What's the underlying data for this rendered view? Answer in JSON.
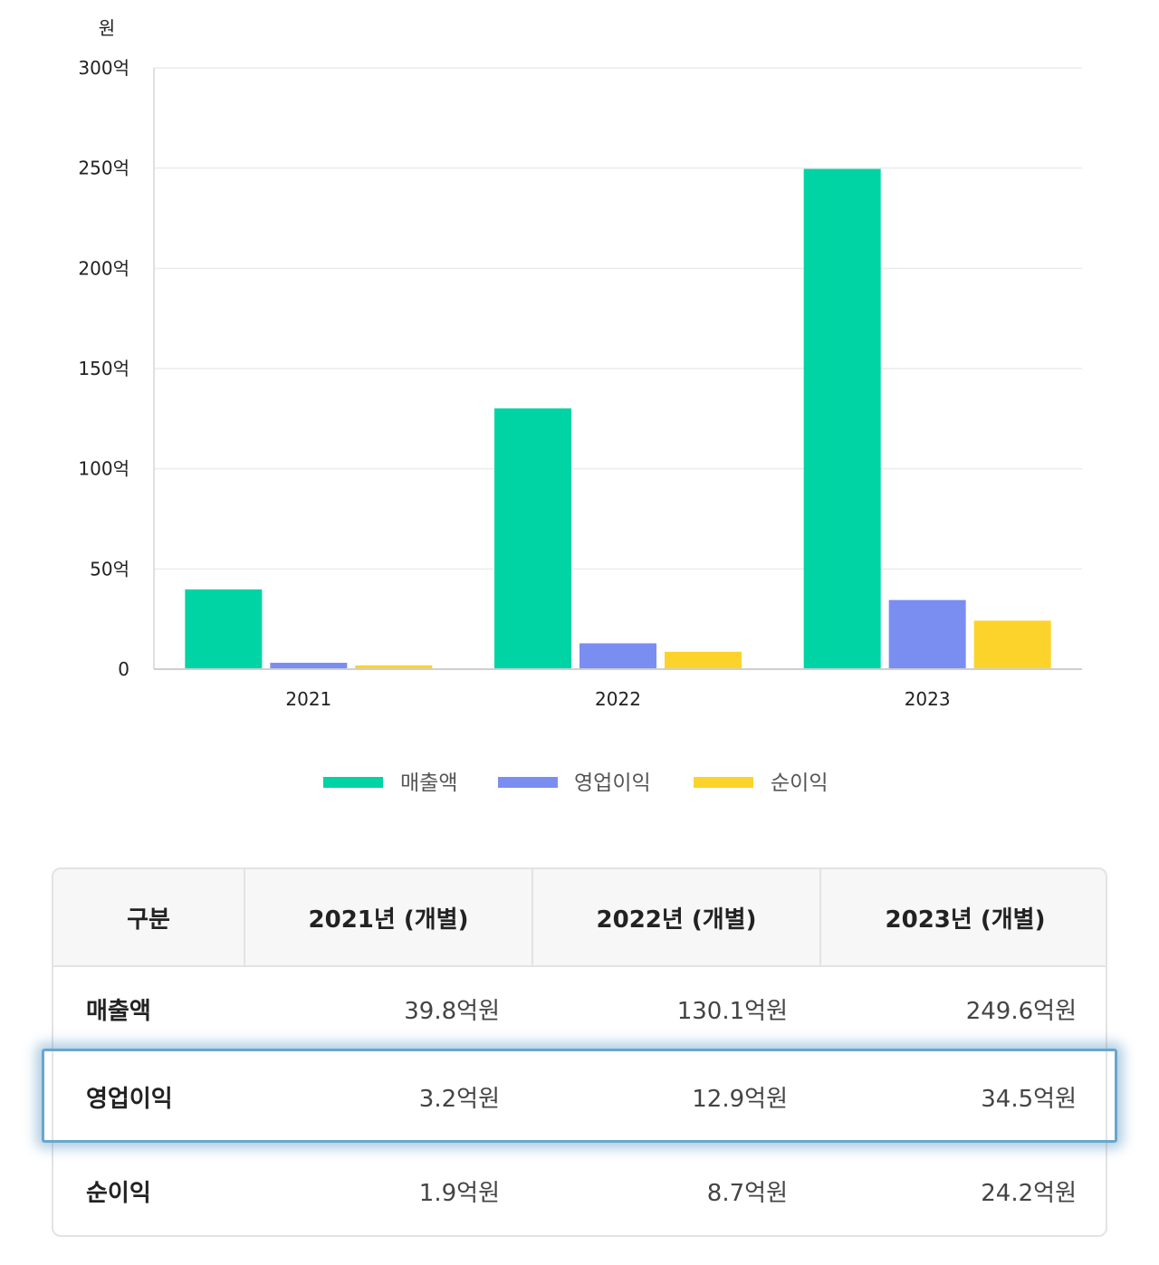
{
  "chart_data": {
    "type": "bar",
    "unit_label": "원",
    "categories": [
      "2021",
      "2022",
      "2023"
    ],
    "series": [
      {
        "name": "매출액",
        "color": "#00d4a4",
        "values": [
          39.8,
          130.1,
          249.6
        ]
      },
      {
        "name": "영업이익",
        "color": "#7a8ef2",
        "values": [
          3.2,
          12.9,
          34.5
        ]
      },
      {
        "name": "순이익",
        "color": "#fcd32a",
        "values": [
          1.9,
          8.7,
          24.2
        ]
      }
    ],
    "ylim": [
      0,
      300
    ],
    "yticks": [
      {
        "value": 0,
        "label": "0"
      },
      {
        "value": 50,
        "label": "50억"
      },
      {
        "value": 100,
        "label": "100억"
      },
      {
        "value": 150,
        "label": "150억"
      },
      {
        "value": 200,
        "label": "200억"
      },
      {
        "value": 250,
        "label": "250억"
      },
      {
        "value": 300,
        "label": "300억"
      }
    ],
    "grid": true,
    "legend_position": "bottom-center"
  },
  "table": {
    "headers": [
      "구분",
      "2021년 (개별)",
      "2022년 (개별)",
      "2023년 (개별)"
    ],
    "rows": [
      {
        "label": "매출액",
        "cells": [
          "39.8억원",
          "130.1억원",
          "249.6억원"
        ]
      },
      {
        "label": "영업이익",
        "cells": [
          "3.2억원",
          "12.9억원",
          "34.5억원"
        ]
      },
      {
        "label": "순이익",
        "cells": [
          "1.9억원",
          "8.7억원",
          "24.2억원"
        ]
      }
    ],
    "highlighted_row": "영업이익",
    "highlight_color": "#6aa7cc"
  }
}
